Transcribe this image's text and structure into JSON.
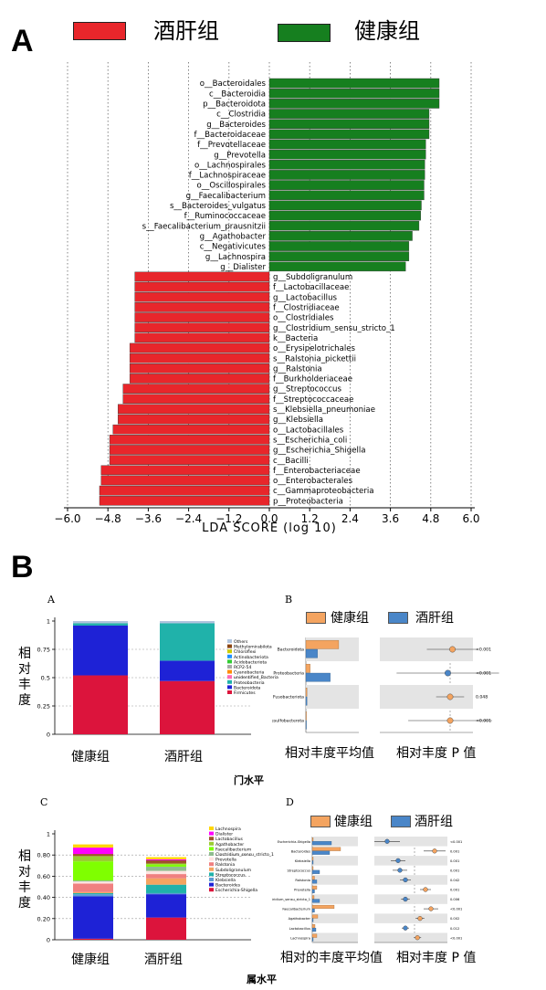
{
  "panel_a": {
    "letter": "A",
    "legend": [
      {
        "label": "酒肝组",
        "color": "#e8262b"
      },
      {
        "label": "健康组",
        "color": "#167f1f"
      }
    ]
  },
  "panel_b": {
    "letter": "B",
    "sub_a": "A",
    "sub_b": "B",
    "sub_c": "C",
    "sub_d": "D",
    "y_label": "相对丰度",
    "caption_phylum": "门水平",
    "caption_genus": "属水平",
    "caption_mean": "相对丰度平均值",
    "caption_mean2": "相对的丰度平均值",
    "caption_p": "相对丰度 P 值",
    "healthy_color": "#f4a460",
    "alcohol_color": "#4a86c8"
  },
  "chart_data": [
    {
      "type": "bar",
      "orientation": "horizontal",
      "xlabel": "LDA SCORE (log 10)",
      "xlim": [
        -6.0,
        6.0
      ],
      "xticks": [
        "−6.0",
        "−4.8",
        "−3.6",
        "−2.4",
        "−1.2",
        "0.0",
        "1.2",
        "2.4",
        "3.6",
        "4.8",
        "6.0"
      ],
      "series": [
        {
          "name": "健康组",
          "color": "#167f1f",
          "categories": [
            "o__Bacteroidales",
            "c__Bacteroidia",
            "p__Bacteroidota",
            "c__Clostridia",
            "g__Bacteroides",
            "f__Bacteroidaceae",
            "f__Prevotellaceae",
            "g__Prevotella",
            "o__Lachnospirales",
            "f__Lachnospiraceae",
            "o__Oscillospirales",
            "g__Faecalibacterium",
            "s__Bacteroides_vulgatus",
            "f__Ruminococcaceae",
            "s__Faecalibacterium_prausnitzii",
            "g__Agathobacter",
            "c__Negativicutes",
            "g__Lachnospira",
            "g__Dialister"
          ],
          "values": [
            5.05,
            5.05,
            5.05,
            4.75,
            4.75,
            4.75,
            4.65,
            4.65,
            4.62,
            4.62,
            4.6,
            4.6,
            4.52,
            4.5,
            4.45,
            4.25,
            4.15,
            4.15,
            4.05
          ]
        },
        {
          "name": "酒肝组",
          "color": "#e8262b",
          "categories": [
            "g__Subdoligranulum",
            "f__Lactobacillaceae",
            "g__Lactobacillus",
            "f__Clostridiaceae",
            "o__Clostridiales",
            "g__Clostridium_sensu_stricto_1",
            "k__Bacteria",
            "o__Erysipelotrichales",
            "s__Ralstonia_pickettii",
            "g__Ralstonia",
            "f__Burkholderiaceae",
            "g__Streptococcus",
            "f__Streptococcaceae",
            "s__Klebsiella_pneumoniae",
            "g__Klebsiella",
            "o__Lactobacillales",
            "s__Escherichia_coli",
            "g__Escherichia_Shigella",
            "c__Bacilli",
            "f__Enterobacteriaceae",
            "o__Enterobacterales",
            "c__Gammaproteobacteria",
            "p__Proteobacteria"
          ],
          "values": [
            -4.0,
            -4.0,
            -4.0,
            -4.0,
            -4.0,
            -4.0,
            -4.0,
            -4.15,
            -4.15,
            -4.15,
            -4.15,
            -4.35,
            -4.35,
            -4.5,
            -4.5,
            -4.65,
            -4.75,
            -4.75,
            -4.75,
            -5.0,
            -5.0,
            -5.05,
            -5.05
          ]
        }
      ]
    },
    {
      "type": "bar",
      "stacked": true,
      "categories": [
        "健康组",
        "酒肝组"
      ],
      "ylim": [
        0,
        1
      ],
      "yticks": [
        "0",
        "0.25",
        "0.5",
        "0.75",
        "1"
      ],
      "legend": [
        "Others",
        "Methylomirabilota",
        "Chloroflexi",
        "Actinobacteriota",
        "Acidobacteriota",
        "RCP2-54",
        "Cyanobacteria",
        "unidentified_Bacteria",
        "Proteobacteria",
        "Bacteroidota",
        "Firmicutes"
      ],
      "series": [
        {
          "name": "Firmicutes",
          "color": "#dc143c",
          "values": [
            0.52,
            0.47
          ]
        },
        {
          "name": "Bacteroidota",
          "color": "#1e22d6",
          "values": [
            0.44,
            0.18
          ]
        },
        {
          "name": "Proteobacteria",
          "color": "#20b2aa",
          "values": [
            0.02,
            0.33
          ]
        },
        {
          "name": "Others",
          "color": "#b0c4de",
          "values": [
            0.02,
            0.02
          ]
        }
      ]
    },
    {
      "type": "bar",
      "orientation": "horizontal",
      "legend": [
        "健康组",
        "酒肝组"
      ],
      "categories": [
        "Bacteroidota",
        "Proteobacteria",
        "Fusobacteriota",
        "Desulfobacterota"
      ],
      "pvalues": [
        "<0.001",
        "<0.001",
        "0.048",
        "<0.001"
      ]
    },
    {
      "type": "bar",
      "stacked": true,
      "categories": [
        "健康组",
        "酒肝组"
      ],
      "ylim": [
        0,
        1
      ],
      "yticks": [
        "0",
        "0.20",
        "0.40",
        "0.60",
        "0.80",
        "1"
      ],
      "legend": [
        "Lachnospira",
        "Dialister",
        "Lactobacillus",
        "Agathobacter",
        "Faecalibacterium",
        "Clostridium_sensu_stricto_1",
        "Prevotella",
        "Ralstonia",
        "Subdoligranulum",
        "Streptococcus",
        "Klebsiella",
        "Bacteroides",
        "Escherichia-Shigella"
      ],
      "series": [
        {
          "name": "Escherichia-Shigella",
          "color": "#dc143c",
          "values": [
            0.01,
            0.21
          ]
        },
        {
          "name": "Bacteroides",
          "color": "#1e22d6",
          "values": [
            0.4,
            0.22
          ]
        },
        {
          "name": "Klebsiella",
          "color": "#5b9bd5",
          "values": [
            0.02,
            0.01
          ]
        },
        {
          "name": "Streptococcus",
          "color": "#20b2aa",
          "values": [
            0.01,
            0.08
          ]
        },
        {
          "name": "Subdoligranulum",
          "color": "#f4a460",
          "values": [
            0.01,
            0.06
          ]
        },
        {
          "name": "Ralstonia",
          "color": "#f08080",
          "values": [
            0.08,
            0.04
          ]
        },
        {
          "name": "Prevotella",
          "color": "#ffe4e1",
          "values": [
            0.02,
            0.03
          ]
        },
        {
          "name": "Clostridium_sensu_stricto_1",
          "color": "#8fbc8f",
          "values": [
            0.01,
            0.04
          ]
        },
        {
          "name": "Faecalibacterium",
          "color": "#7fff00",
          "values": [
            0.18,
            0.02
          ]
        },
        {
          "name": "Agathobacter",
          "color": "#9acd32",
          "values": [
            0.05,
            0.01
          ]
        },
        {
          "name": "Lactobacillus",
          "color": "#a0522d",
          "values": [
            0.02,
            0.03
          ]
        },
        {
          "name": "Dialister",
          "color": "#ff00ff",
          "values": [
            0.06,
            0.01
          ]
        },
        {
          "name": "Lachnospira",
          "color": "#ffd700",
          "values": [
            0.03,
            0.02
          ]
        }
      ]
    },
    {
      "type": "bar",
      "orientation": "horizontal",
      "legend": [
        "健康组",
        "酒肝组"
      ],
      "categories": [
        "Escherichia-Shigella",
        "Bacteroides",
        "Klebsiella",
        "Streptococcus",
        "Ralstonia",
        "Prevotella",
        "Clostridium_sensu_stricto_1",
        "Faecalibacterium",
        "Agathobacter",
        "Lactobacillus",
        "Lachnospira"
      ],
      "pvalues": [
        "<0.001",
        "0.001",
        "0.001",
        "0.001",
        "0.042",
        "0.001",
        "0.006",
        "<0.001",
        "0.002",
        "0.012",
        "<0.001"
      ]
    }
  ]
}
